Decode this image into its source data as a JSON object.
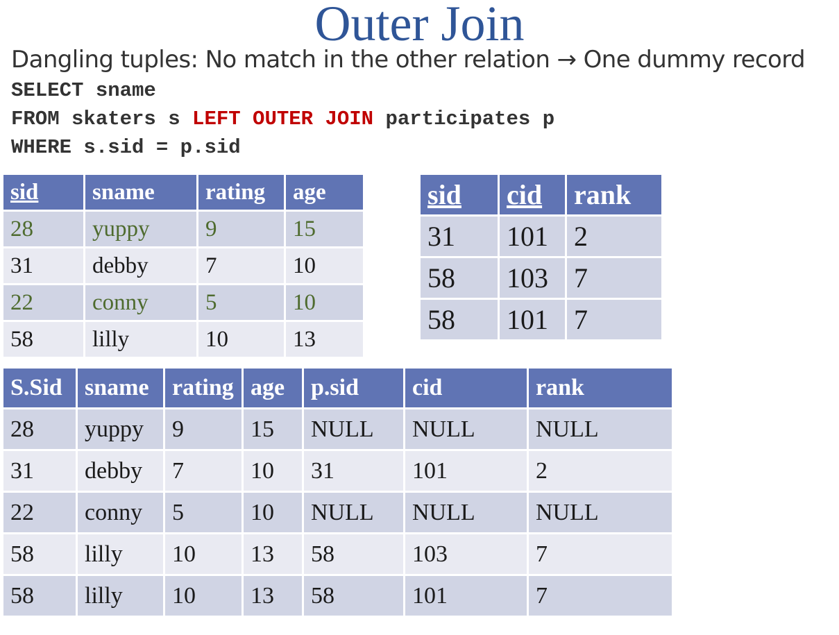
{
  "title": "Outer Join",
  "subtitle": "Dangling tuples: No match in the other relation →  One dummy record",
  "sql": {
    "line1": "SELECT sname",
    "line2_pre": "FROM skaters s ",
    "line2_kw": "LEFT OUTER JOIN",
    "line2_post": " participates p",
    "line3": "WHERE s.sid = p.sid"
  },
  "skaters": {
    "headers": [
      "sid",
      "sname",
      "rating",
      "age"
    ],
    "rows": [
      [
        "28",
        "yuppy",
        "9",
        "15"
      ],
      [
        "31",
        "debby",
        "7",
        "10"
      ],
      [
        "22",
        "conny",
        "5",
        "10"
      ],
      [
        "58",
        "lilly",
        "10",
        "13"
      ]
    ]
  },
  "participates": {
    "headers": [
      "sid",
      "cid",
      "rank"
    ],
    "rows": [
      [
        "31",
        "101",
        "2"
      ],
      [
        "58",
        "103",
        "7"
      ],
      [
        "58",
        "101",
        "7"
      ]
    ]
  },
  "result": {
    "headers": [
      "S.Sid",
      "sname",
      "rating",
      "age",
      "p.sid",
      "cid",
      "rank"
    ],
    "rows": [
      [
        "28",
        "yuppy",
        "9",
        "15",
        "NULL",
        "NULL",
        "NULL"
      ],
      [
        "31",
        "debby",
        "7",
        "10",
        "31",
        "101",
        "2"
      ],
      [
        "22",
        "conny",
        "5",
        "10",
        "NULL",
        "NULL",
        "NULL"
      ],
      [
        "58",
        "lilly",
        "10",
        "13",
        "58",
        "103",
        "7"
      ],
      [
        "58",
        "lilly",
        "10",
        "13",
        "58",
        "101",
        "7"
      ]
    ]
  },
  "colors": {
    "title": "#2f5597",
    "header_bg": "#6074b4",
    "row_odd": "#d0d4e4",
    "row_even": "#e9eaf2",
    "keyword": "#c00000",
    "dangling_text": "#4e6b2e"
  }
}
